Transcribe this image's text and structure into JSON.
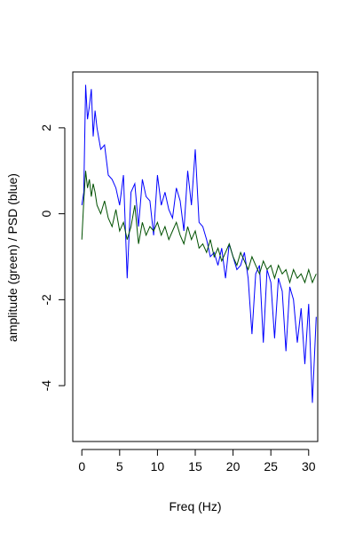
{
  "chart_data": {
    "type": "line",
    "title": "",
    "xlabel": "Freq (Hz)",
    "ylabel": "amplitude (green) / PSD (blue)",
    "xlim": [
      -1.2,
      31.2
    ],
    "ylim": [
      -5.3,
      3.3
    ],
    "x_ticks": [
      0,
      5,
      10,
      15,
      20,
      25,
      30
    ],
    "x_tick_labels": [
      "0",
      "5",
      "10",
      "15",
      "20",
      "25",
      "30"
    ],
    "y_ticks": [
      -4,
      -2,
      0,
      2
    ],
    "y_tick_labels": [
      "-4",
      "-2",
      "0",
      "2"
    ],
    "grid": false,
    "legend": "none",
    "series": [
      {
        "color": "#0000ff",
        "x": [
          0,
          0.25,
          0.5,
          0.75,
          1,
          1.25,
          1.5,
          1.75,
          2,
          2.5,
          3,
          3.5,
          4,
          4.5,
          5,
          5.5,
          6,
          6.5,
          7,
          7.5,
          8,
          8.5,
          9,
          9.5,
          10,
          10.5,
          11,
          11.5,
          12,
          12.5,
          13,
          13.5,
          14,
          14.5,
          15,
          15.5,
          16,
          16.5,
          17,
          17.5,
          18,
          18.5,
          19,
          19.5,
          20,
          20.5,
          21,
          21.5,
          22,
          22.5,
          23,
          23.5,
          24,
          24.5,
          25,
          25.5,
          26,
          26.5,
          27,
          27.5,
          28,
          28.5,
          29,
          29.5,
          30,
          30.5,
          31
        ],
        "y": [
          0.2,
          0.5,
          3.0,
          2.2,
          2.5,
          2.9,
          1.8,
          2.4,
          2.0,
          1.5,
          1.6,
          0.9,
          0.8,
          0.6,
          0.2,
          0.9,
          -1.5,
          0.5,
          0.7,
          -0.3,
          0.8,
          0.4,
          0.3,
          -0.5,
          0.9,
          0.2,
          0.5,
          0.1,
          -0.1,
          0.6,
          0.3,
          -0.4,
          1.0,
          0.2,
          1.5,
          -0.2,
          -0.3,
          -0.6,
          -1.0,
          -0.9,
          -1.2,
          -0.8,
          -1.5,
          -0.7,
          -1.0,
          -1.3,
          -1.2,
          -0.9,
          -1.5,
          -2.8,
          -1.4,
          -1.2,
          -3.0,
          -1.3,
          -1.6,
          -2.9,
          -1.5,
          -1.8,
          -3.2,
          -1.7,
          -2.0,
          -3.0,
          -2.2,
          -3.5,
          -2.1,
          -4.4,
          -2.4
        ]
      },
      {
        "color": "#005000",
        "x": [
          0,
          0.25,
          0.5,
          0.75,
          1,
          1.25,
          1.5,
          1.75,
          2,
          2.5,
          3,
          3.5,
          4,
          4.5,
          5,
          5.5,
          6,
          6.5,
          7,
          7.5,
          8,
          8.5,
          9,
          9.5,
          10,
          10.5,
          11,
          11.5,
          12,
          12.5,
          13,
          13.5,
          14,
          14.5,
          15,
          15.5,
          16,
          16.5,
          17,
          17.5,
          18,
          18.5,
          19,
          19.5,
          20,
          20.5,
          21,
          21.5,
          22,
          22.5,
          23,
          23.5,
          24,
          24.5,
          25,
          25.5,
          26,
          26.5,
          27,
          27.5,
          28,
          28.5,
          29,
          29.5,
          30,
          30.5,
          31
        ],
        "y": [
          -0.6,
          0.3,
          1.0,
          0.6,
          0.8,
          0.4,
          0.7,
          0.5,
          0.2,
          0.0,
          0.3,
          -0.1,
          -0.3,
          0.1,
          -0.4,
          -0.2,
          -0.6,
          -0.3,
          0.2,
          -0.7,
          -0.2,
          -0.5,
          -0.3,
          -0.4,
          -0.2,
          -0.5,
          -0.3,
          -0.6,
          -0.4,
          -0.2,
          -0.5,
          -0.7,
          -0.3,
          -0.6,
          -0.4,
          -0.8,
          -0.7,
          -0.9,
          -0.6,
          -1.0,
          -0.8,
          -1.1,
          -0.9,
          -0.7,
          -1.0,
          -1.2,
          -0.9,
          -1.1,
          -1.3,
          -1.0,
          -1.2,
          -1.4,
          -1.1,
          -1.3,
          -1.2,
          -1.5,
          -1.2,
          -1.4,
          -1.3,
          -1.6,
          -1.3,
          -1.5,
          -1.4,
          -1.6,
          -1.3,
          -1.6,
          -1.4
        ]
      }
    ]
  }
}
